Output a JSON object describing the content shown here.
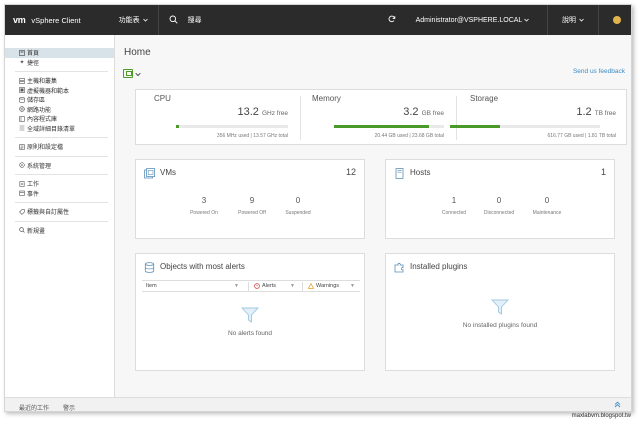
{
  "header": {
    "logo_mark": "vm",
    "app_name": "vSphere Client",
    "menu_label": "功能表",
    "search_label": "搜尋",
    "user_label": "Administrator@VSPHERE.LOCAL",
    "help_label": "說明",
    "icons": [
      "search-icon",
      "refresh-icon",
      "chevron-down-icon",
      "smiley-icon"
    ]
  },
  "sidebar": {
    "items": [
      {
        "label": "首頁",
        "icon": "home-icon"
      },
      {
        "label": "捷徑",
        "icon": "shortcut-icon"
      },
      {
        "label": "主機和叢集",
        "icon": "host-icon"
      },
      {
        "label": "虛擬機器和範本",
        "icon": "vm-icon"
      },
      {
        "label": "儲存區",
        "icon": "storage-icon"
      },
      {
        "label": "網路功能",
        "icon": "network-icon"
      },
      {
        "label": "內容程式庫",
        "icon": "library-icon"
      },
      {
        "label": "全域詳細目錄清單",
        "icon": "inventory-icon"
      },
      {
        "label": "原則和設定檔",
        "icon": "policy-icon"
      },
      {
        "label": "系統管理",
        "icon": "admin-icon"
      },
      {
        "label": "工作",
        "icon": "task-icon"
      },
      {
        "label": "事件",
        "icon": "event-icon"
      },
      {
        "label": "標籤與自訂屬性",
        "icon": "tag-icon"
      },
      {
        "label": "新規畫",
        "icon": "search-icon"
      }
    ]
  },
  "main": {
    "title": "Home",
    "feedback_label": "Send us feedback",
    "resources": [
      {
        "name": "CPU",
        "value": "13.2",
        "unit": "GHz free",
        "used": "356 MHz used",
        "total": "13.57 GHz total",
        "used_fraction": 0.026
      },
      {
        "name": "Memory",
        "value": "3.2",
        "unit": "GB free",
        "used": "20.44 GB used",
        "total": "23.68 GB total",
        "used_fraction": 0.863
      },
      {
        "name": "Storage",
        "value": "1.2",
        "unit": "TB free",
        "used": "616.77 GB used",
        "total": "1.81 TB total",
        "used_fraction": 0.333
      }
    ],
    "vms": {
      "title": "VMs",
      "count": "12",
      "stats": [
        {
          "value": "3",
          "label": "Powered On"
        },
        {
          "value": "9",
          "label": "Powered Off"
        },
        {
          "value": "0",
          "label": "Suspended"
        }
      ]
    },
    "hosts": {
      "title": "Hosts",
      "count": "1",
      "stats": [
        {
          "value": "1",
          "label": "Connected"
        },
        {
          "value": "0",
          "label": "Disconnected"
        },
        {
          "value": "0",
          "label": "Maintenance"
        }
      ]
    },
    "alerts": {
      "title": "Objects with most alerts",
      "columns": [
        "Item",
        "Alerts",
        "Warnings"
      ],
      "empty": "No alerts found"
    },
    "plugins": {
      "title": "Installed plugins",
      "empty": "No installed plugins found"
    }
  },
  "footer": {
    "tabs": [
      "最近的工作",
      "警示"
    ]
  },
  "watermark": "maxlabvm.blogspot.tw",
  "colors": {
    "header_bg": "#2b2b2b",
    "accent_green": "#4a9a2a",
    "link_blue": "#3d8bc4"
  }
}
